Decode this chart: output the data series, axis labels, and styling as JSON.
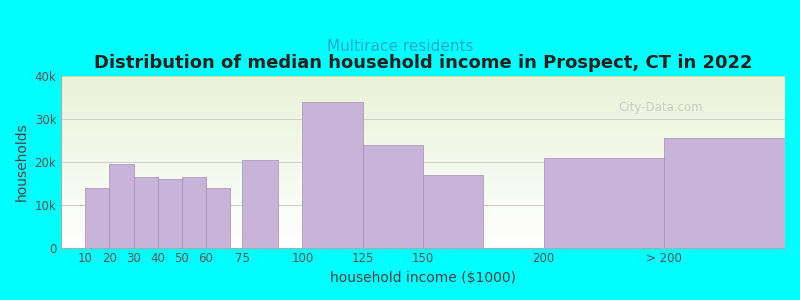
{
  "title": "Distribution of median household income in Prospect, CT in 2022",
  "subtitle": "Multirace residents",
  "xlabel": "household income ($1000)",
  "ylabel": "households",
  "background_color": "#00FFFF",
  "bar_color": "#c8b4d8",
  "bar_edge_color": "#a090b8",
  "categories": [
    "10",
    "20",
    "30",
    "40",
    "50",
    "60",
    "75",
    "100",
    "125",
    "150",
    "200",
    "> 200"
  ],
  "values": [
    14000,
    19500,
    16500,
    16000,
    16500,
    14000,
    20500,
    34000,
    24000,
    17000,
    21000,
    25500
  ],
  "x_positions": [
    10,
    20,
    30,
    40,
    50,
    60,
    75,
    100,
    125,
    150,
    200,
    250
  ],
  "widths": [
    10,
    10,
    10,
    10,
    10,
    10,
    15,
    25,
    25,
    25,
    50,
    50
  ],
  "xlim": [
    0,
    300
  ],
  "ylim": [
    0,
    40000
  ],
  "yticks": [
    0,
    10000,
    20000,
    30000,
    40000
  ],
  "ytick_labels": [
    "0",
    "10k",
    "20k",
    "30k",
    "40k"
  ],
  "watermark": "City-Data.com",
  "title_fontsize": 13,
  "subtitle_fontsize": 11,
  "axis_label_fontsize": 10,
  "tick_fontsize": 8.5
}
